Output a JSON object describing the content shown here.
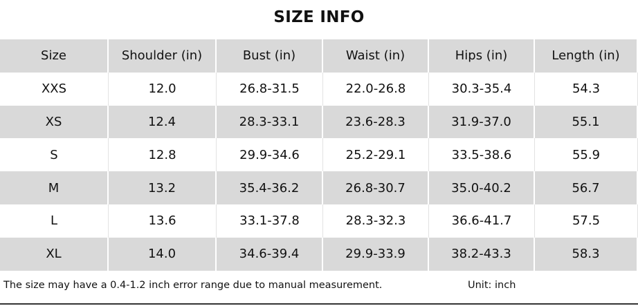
{
  "header": {
    "title": "SIZE INFO"
  },
  "table": {
    "columns": [
      "Size",
      "Shoulder (in)",
      "Bust (in)",
      "Waist (in)",
      "Hips (in)",
      "Length (in)"
    ],
    "rows": [
      [
        "XXS",
        "12.0",
        "26.8-31.5",
        "22.0-26.8",
        "30.3-35.4",
        "54.3"
      ],
      [
        "XS",
        "12.4",
        "28.3-33.1",
        "23.6-28.3",
        "31.9-37.0",
        "55.1"
      ],
      [
        "S",
        "12.8",
        "29.9-34.6",
        "25.2-29.1",
        "33.5-38.6",
        "55.9"
      ],
      [
        "M",
        "13.2",
        "35.4-36.2",
        "26.8-30.7",
        "35.0-40.2",
        "56.7"
      ],
      [
        "L",
        "13.6",
        "33.1-37.8",
        "28.3-32.3",
        "36.6-41.7",
        "57.5"
      ],
      [
        "XL",
        "14.0",
        "34.6-39.4",
        "29.9-33.9",
        "38.2-43.3",
        "58.3"
      ]
    ]
  },
  "footer": {
    "note": "The size may have a 0.4-1.2 inch error range due to manual measurement.",
    "unit": "Unit: inch"
  }
}
